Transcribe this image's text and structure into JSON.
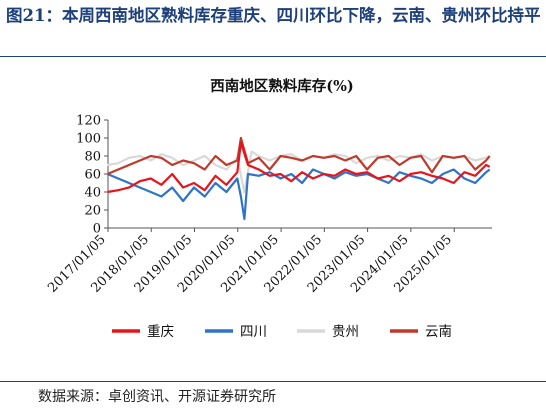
{
  "figure": {
    "caption": "图21：本周西南地区熟料库存重庆、四川环比下降，云南、贵州环比持平",
    "source": "数据来源：卓创资讯、开源证券研究所"
  },
  "chart_data": {
    "type": "line",
    "title": "西南地区熟料库存(%)",
    "ylim": [
      0,
      120
    ],
    "yticks": [
      0,
      20,
      40,
      60,
      80,
      100,
      120
    ],
    "xticks": [
      "2017/01/05",
      "2018/01/05",
      "2019/01/05",
      "2020/01/05",
      "2021/01/05",
      "2022/01/05",
      "2023/01/05",
      "2024/01/05",
      "2025/01/05"
    ],
    "x_range": [
      "2017/01/05",
      "2025/11/20"
    ],
    "grid": false,
    "legend_position": "bottom",
    "series": [
      {
        "name": "重庆",
        "color": "#e8141b",
        "x": [
          "2017/01",
          "2017/04",
          "2017/07",
          "2017/10",
          "2018/01",
          "2018/04",
          "2018/07",
          "2018/10",
          "2019/01",
          "2019/04",
          "2019/07",
          "2019/10",
          "2020/01",
          "2020/02",
          "2020/04",
          "2020/07",
          "2020/10",
          "2021/01",
          "2021/04",
          "2021/07",
          "2021/10",
          "2022/01",
          "2022/04",
          "2022/07",
          "2022/10",
          "2023/01",
          "2023/04",
          "2023/07",
          "2023/10",
          "2024/01",
          "2024/04",
          "2024/07",
          "2024/10",
          "2025/01",
          "2025/04",
          "2025/07",
          "2025/10",
          "2025/11"
        ],
        "values": [
          40,
          42,
          45,
          52,
          55,
          48,
          60,
          45,
          50,
          42,
          58,
          48,
          62,
          95,
          70,
          65,
          58,
          60,
          52,
          62,
          55,
          60,
          58,
          65,
          60,
          62,
          55,
          58,
          52,
          60,
          62,
          58,
          55,
          50,
          62,
          58,
          70,
          68
        ]
      },
      {
        "name": "四川",
        "color": "#2f74c9",
        "x": [
          "2017/01",
          "2017/04",
          "2017/07",
          "2017/10",
          "2018/01",
          "2018/04",
          "2018/07",
          "2018/10",
          "2019/01",
          "2019/04",
          "2019/07",
          "2019/10",
          "2020/01",
          "2020/02",
          "2020/03",
          "2020/04",
          "2020/07",
          "2020/10",
          "2021/01",
          "2021/04",
          "2021/07",
          "2021/10",
          "2022/01",
          "2022/04",
          "2022/07",
          "2022/10",
          "2023/01",
          "2023/04",
          "2023/07",
          "2023/10",
          "2024/01",
          "2024/04",
          "2024/07",
          "2024/10",
          "2025/01",
          "2025/04",
          "2025/07",
          "2025/10",
          "2025/11"
        ],
        "values": [
          60,
          55,
          50,
          45,
          40,
          35,
          45,
          30,
          45,
          35,
          50,
          40,
          55,
          35,
          10,
          60,
          58,
          62,
          55,
          60,
          50,
          65,
          60,
          55,
          62,
          58,
          60,
          55,
          50,
          62,
          58,
          55,
          50,
          60,
          65,
          55,
          50,
          62,
          65
        ]
      },
      {
        "name": "贵州",
        "color": "#d9d9d9",
        "x": [
          "2017/01",
          "2017/04",
          "2017/07",
          "2017/10",
          "2018/01",
          "2018/04",
          "2018/07",
          "2018/10",
          "2019/01",
          "2019/04",
          "2019/07",
          "2019/10",
          "2020/01",
          "2020/03",
          "2020/05",
          "2020/07",
          "2020/10",
          "2021/01",
          "2021/04",
          "2021/07",
          "2021/10",
          "2022/01",
          "2022/04",
          "2022/07",
          "2022/10",
          "2023/01",
          "2023/04",
          "2023/07",
          "2023/10",
          "2024/01",
          "2024/04",
          "2024/07",
          "2024/10",
          "2025/01",
          "2025/04",
          "2025/07",
          "2025/10",
          "2025/11"
        ],
        "values": [
          70,
          72,
          78,
          80,
          75,
          82,
          78,
          70,
          75,
          80,
          70,
          65,
          78,
          40,
          85,
          80,
          75,
          80,
          82,
          75,
          80,
          78,
          82,
          80,
          72,
          78,
          80,
          75,
          80,
          78,
          82,
          75,
          80,
          78,
          80,
          75,
          78,
          80
        ]
      },
      {
        "name": "云南",
        "color": "#c0392b",
        "x": [
          "2017/01",
          "2017/04",
          "2017/07",
          "2017/10",
          "2018/01",
          "2018/04",
          "2018/07",
          "2018/10",
          "2019/01",
          "2019/04",
          "2019/07",
          "2019/10",
          "2020/01",
          "2020/02",
          "2020/04",
          "2020/07",
          "2020/10",
          "2021/01",
          "2021/04",
          "2021/07",
          "2021/10",
          "2022/01",
          "2022/04",
          "2022/07",
          "2022/10",
          "2023/01",
          "2023/04",
          "2023/07",
          "2023/10",
          "2024/01",
          "2024/04",
          "2024/07",
          "2024/10",
          "2025/01",
          "2025/04",
          "2025/07",
          "2025/10",
          "2025/11"
        ],
        "values": [
          60,
          65,
          70,
          75,
          80,
          78,
          70,
          75,
          72,
          65,
          80,
          70,
          75,
          100,
          72,
          78,
          65,
          80,
          78,
          75,
          80,
          78,
          80,
          75,
          80,
          65,
          78,
          80,
          70,
          78,
          80,
          62,
          80,
          78,
          80,
          65,
          75,
          80
        ]
      }
    ]
  }
}
